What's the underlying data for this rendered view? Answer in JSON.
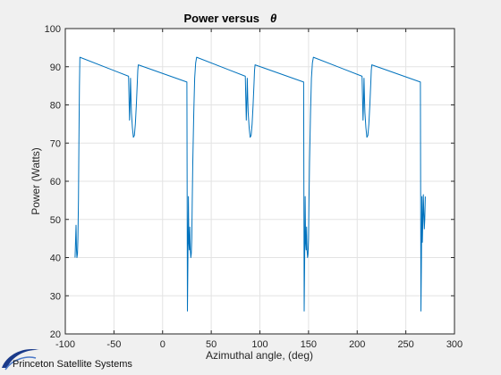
{
  "chart_data": {
    "type": "line",
    "title": "Power versus",
    "title_symbol": "θ",
    "xlabel": "Azimuthal angle,  (deg)",
    "ylabel": "Power (Watts)",
    "xlim": [
      -100,
      300
    ],
    "ylim": [
      20,
      100
    ],
    "xticks": [
      -100,
      -50,
      0,
      50,
      100,
      150,
      200,
      250,
      300
    ],
    "yticks": [
      20,
      30,
      40,
      50,
      60,
      70,
      80,
      90,
      100
    ],
    "xtick_labels": [
      "-100",
      "-50",
      "0",
      "50",
      "100",
      "150",
      "200",
      "250",
      "300"
    ],
    "ytick_labels": [
      "20",
      "30",
      "40",
      "50",
      "60",
      "70",
      "80",
      "90",
      "100"
    ],
    "grid": true,
    "line_color": "#0072bd",
    "series": [
      {
        "x": [
          -90,
          -89,
          -88.5,
          -88,
          -87.5,
          -87,
          -86.5,
          -86,
          -85.5,
          -85,
          -35,
          -34.5,
          -34,
          -33.5,
          -33,
          -32.5,
          -32,
          -31,
          -30,
          -29,
          -28,
          -27,
          -26,
          -25.5,
          -25,
          25,
          25.5,
          26,
          26.5,
          27,
          27.5,
          28,
          28.5,
          29,
          29.5,
          30,
          30.5,
          31,
          32,
          33,
          34,
          35,
          85,
          85.5,
          86,
          86.5,
          87,
          87.5,
          88,
          89,
          90,
          91,
          92,
          93,
          94,
          94.5,
          95,
          145,
          145.5,
          146,
          146.5,
          147,
          147.5,
          148,
          148.5,
          149,
          149.5,
          150,
          150.5,
          151,
          152,
          153,
          154,
          155,
          205,
          205.5,
          206,
          206.5,
          207,
          207.5,
          208,
          209,
          210,
          211,
          212,
          213,
          214,
          214.5,
          215,
          265,
          265.5,
          266,
          266.5,
          267,
          267.5,
          268,
          268.5,
          269,
          269.5,
          270
        ],
        "y": [
          40,
          48.5,
          42,
          40,
          41,
          45,
          55,
          70,
          85,
          92.5,
          87.5,
          82,
          76,
          80,
          87,
          82,
          78,
          74,
          71.5,
          72,
          75,
          80,
          86,
          89,
          90.5,
          86,
          26,
          38,
          56,
          44,
          42,
          48,
          42,
          40,
          41,
          45,
          55,
          65,
          78,
          87,
          91,
          92.5,
          87.5,
          82,
          76,
          80,
          87,
          82,
          78,
          74,
          71.5,
          72,
          75,
          80,
          86,
          89,
          90.5,
          86,
          26,
          38,
          56,
          44,
          42,
          48,
          42,
          40,
          41,
          45,
          55,
          65,
          78,
          87,
          91,
          92.5,
          87.5,
          82,
          76,
          80,
          87,
          82,
          78,
          74,
          71.5,
          72,
          75,
          80,
          86,
          89,
          90.5,
          86,
          26,
          38,
          56,
          44,
          50,
          56.5,
          52,
          47.5,
          50,
          56
        ]
      }
    ]
  },
  "branding": {
    "company_name": "Princeton Satellite Systems"
  }
}
